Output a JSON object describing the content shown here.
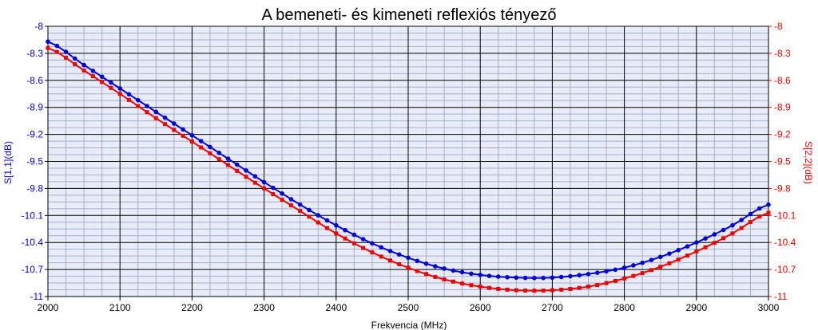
{
  "chart_data": {
    "type": "line",
    "title": "A bemeneti- és kimeneti reflexiós tényező",
    "xlabel": "Frekvencia (MHz)",
    "ylabel_left": "S[1,1](dB)",
    "ylabel_right": "S[2,2](dB)",
    "xlim": [
      2000,
      3000
    ],
    "ylim": [
      -11,
      -8
    ],
    "xticks": [
      "2000",
      "2100",
      "2200",
      "2300",
      "2400",
      "2500",
      "2600",
      "2700",
      "2800",
      "2900",
      "3000"
    ],
    "yticks": [
      "-8",
      "-8.3",
      "-8.6",
      "-8.9",
      "-9.2",
      "-9.5",
      "-9.8",
      "-10.1",
      "-10.4",
      "-10.7",
      "-11"
    ],
    "grid": true,
    "minor_grid": true,
    "colors": {
      "background": "#e8ecf8",
      "grid_major": "#000000",
      "grid_minor": "#a8b0c8",
      "s11": "#0000dd",
      "s22": "#ee0000"
    },
    "series": [
      {
        "name": "S[1,1](dB)",
        "axis": "left",
        "marker": "circle",
        "x": [
          2000,
          2050,
          2100,
          2150,
          2200,
          2250,
          2300,
          2350,
          2400,
          2450,
          2500,
          2550,
          2600,
          2650,
          2700,
          2750,
          2800,
          2850,
          2900,
          2950,
          3000
        ],
        "values": [
          -8.17,
          -8.43,
          -8.69,
          -8.95,
          -9.21,
          -9.47,
          -9.73,
          -9.98,
          -10.21,
          -10.41,
          -10.57,
          -10.69,
          -10.76,
          -10.79,
          -10.79,
          -10.75,
          -10.68,
          -10.56,
          -10.4,
          -10.21,
          -9.98
        ]
      },
      {
        "name": "S[2,2](dB)",
        "axis": "right",
        "marker": "square",
        "x": [
          2000,
          2050,
          2100,
          2150,
          2200,
          2250,
          2300,
          2350,
          2400,
          2450,
          2500,
          2550,
          2600,
          2650,
          2700,
          2750,
          2800,
          2850,
          2900,
          2950,
          3000
        ],
        "values": [
          -8.24,
          -8.49,
          -8.75,
          -9.02,
          -9.28,
          -9.54,
          -9.8,
          -10.05,
          -10.3,
          -10.51,
          -10.68,
          -10.81,
          -10.89,
          -10.93,
          -10.93,
          -10.89,
          -10.8,
          -10.67,
          -10.5,
          -10.3,
          -10.07
        ]
      }
    ]
  }
}
